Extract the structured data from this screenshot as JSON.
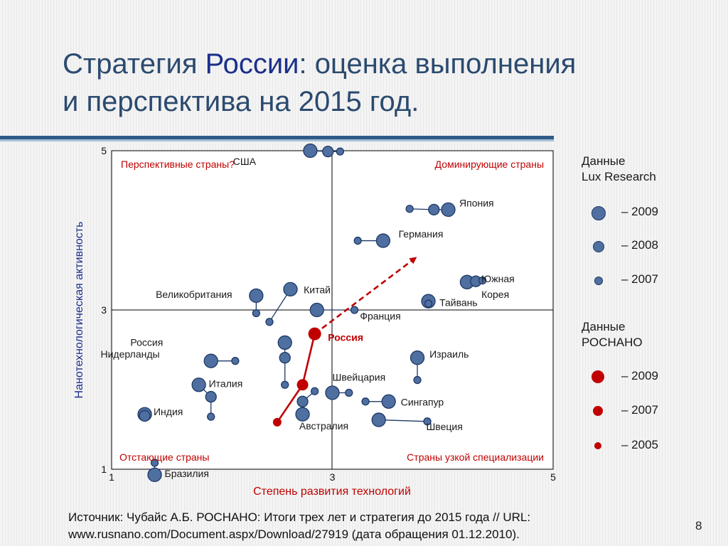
{
  "slide": {
    "title_line1_pre": "Стратегия ",
    "title_line1_hl": "России",
    "title_line1_post": ": оценка выполнения",
    "title_line2": "и перспектива на 2015 год.",
    "source_line1": "Источник: Чубайс А.Б. РОСНАНО: Итоги трех лет и стратегия до 2015 года // URL:",
    "source_line2": "www.rusnano.com/Document.aspx/Download/27919 (дата обращения 01.12.2010).",
    "page_number": "8"
  },
  "colors": {
    "lux": "#4f6fa0",
    "lux_stroke": "#1e3866",
    "rosnano": "#c00000",
    "quadrant_text": "#c00000",
    "axis_title": "#c00000",
    "title": "#2b4a6f"
  },
  "legend": {
    "lux_title": [
      "Данные",
      "Lux Research"
    ],
    "lux_items": [
      {
        "label": "– 2009",
        "size": "large"
      },
      {
        "label": "– 2008",
        "size": "medium"
      },
      {
        "label": "– 2007",
        "size": "small"
      }
    ],
    "rosnano_title": [
      "Данные",
      "РОСНАНО"
    ],
    "rosnano_items": [
      {
        "label": "– 2009",
        "size": "large"
      },
      {
        "label": "– 2007",
        "size": "medium"
      },
      {
        "label": "– 2005",
        "size": "small"
      }
    ]
  },
  "chart_data": {
    "type": "scatter",
    "xlabel": "Степень развития технологий",
    "ylabel": "Нанотехнологическая активность",
    "xlim": [
      1,
      5
    ],
    "ylim": [
      1,
      5
    ],
    "xticks": [
      "1",
      "3",
      "5"
    ],
    "yticks": [
      "1",
      "3",
      "5"
    ],
    "grid": false,
    "divider_lines": {
      "x": 3,
      "y": 3
    },
    "quadrants": [
      {
        "label": "Перспективные страны?",
        "position": "top-left"
      },
      {
        "label": "Доминирующие страны",
        "position": "top-right"
      },
      {
        "label": "Отстающие страны",
        "position": "bottom-left"
      },
      {
        "label": "Страны узкой специализации",
        "position": "bottom-right"
      }
    ],
    "countries": [
      {
        "name": "США",
        "label_x": 2.1,
        "label_y": 4.82,
        "points": [
          {
            "x": 2.8,
            "y": 5.0,
            "year": 2009
          },
          {
            "x": 2.96,
            "y": 4.99,
            "year": 2008
          },
          {
            "x": 3.07,
            "y": 4.99,
            "year": 2007
          }
        ]
      },
      {
        "name": "Япония",
        "label_x": 4.15,
        "label_y": 4.3,
        "points": [
          {
            "x": 4.05,
            "y": 4.26,
            "year": 2009
          },
          {
            "x": 3.92,
            "y": 4.26,
            "year": 2008
          },
          {
            "x": 3.7,
            "y": 4.27,
            "year": 2007
          }
        ]
      },
      {
        "name": "Германия",
        "label_x": 3.6,
        "label_y": 3.91,
        "points": [
          {
            "x": 3.46,
            "y": 3.87,
            "year": 2009
          },
          {
            "x": 3.23,
            "y": 3.87,
            "year": 2007
          }
        ]
      },
      {
        "name": "Южная",
        "label_x": 4.35,
        "label_y": 3.35,
        "points": [
          {
            "x": 4.22,
            "y": 3.35,
            "year": 2009
          },
          {
            "x": 4.3,
            "y": 3.36,
            "year": 2008
          },
          {
            "x": 4.36,
            "y": 3.37,
            "year": 2007
          }
        ]
      },
      {
        "name": "Корея",
        "label_x": 4.35,
        "label_y": 3.15,
        "points": []
      },
      {
        "name": "Тайвань",
        "label_x": 3.97,
        "label_y": 3.05,
        "points": [
          {
            "x": 3.87,
            "y": 3.11,
            "year": 2009
          },
          {
            "x": 3.87,
            "y": 3.08,
            "year": 2007
          }
        ]
      },
      {
        "name": "Франция",
        "label_x": 3.25,
        "label_y": 2.88,
        "points": [
          {
            "x": 2.86,
            "y": 3.0,
            "year": 2009
          },
          {
            "x": 3.2,
            "y": 3.0,
            "year": 2007
          }
        ]
      },
      {
        "name": "Китай",
        "label_x": 2.74,
        "label_y": 3.21,
        "points": [
          {
            "x": 2.62,
            "y": 3.26,
            "year": 2009
          },
          {
            "x": 2.43,
            "y": 2.85,
            "year": 2007
          }
        ]
      },
      {
        "name": "Великобритания",
        "label_x": 1.4,
        "label_y": 3.15,
        "points": [
          {
            "x": 2.31,
            "y": 3.18,
            "year": 2009
          },
          {
            "x": 2.31,
            "y": 2.96,
            "year": 2007
          }
        ]
      },
      {
        "name": "Россия",
        "label_x": 1.17,
        "label_y": 2.55,
        "points": [
          {
            "x": 2.57,
            "y": 2.59,
            "year": 2009
          },
          {
            "x": 2.57,
            "y": 2.4,
            "year": 2008
          },
          {
            "x": 2.57,
            "y": 2.06,
            "year": 2007
          }
        ]
      },
      {
        "name": "Нидерланды",
        "label_x": 0.9,
        "label_y": 2.4,
        "points": [
          {
            "x": 1.9,
            "y": 2.36,
            "year": 2009
          },
          {
            "x": 2.12,
            "y": 2.36,
            "year": 2007
          }
        ]
      },
      {
        "name": "Израиль",
        "label_x": 3.88,
        "label_y": 2.4,
        "points": [
          {
            "x": 3.77,
            "y": 2.4,
            "year": 2009
          },
          {
            "x": 3.77,
            "y": 2.12,
            "year": 2007
          }
        ]
      },
      {
        "name": "Италия",
        "label_x": 1.88,
        "label_y": 2.03,
        "points": [
          {
            "x": 1.79,
            "y": 2.06,
            "year": 2009
          },
          {
            "x": 1.9,
            "y": 1.91,
            "year": 2008
          },
          {
            "x": 1.9,
            "y": 1.66,
            "year": 2007
          }
        ]
      },
      {
        "name": "Швейцария",
        "label_x": 3.0,
        "label_y": 2.11,
        "points": [
          {
            "x": 3.0,
            "y": 1.96,
            "year": 2009
          },
          {
            "x": 3.15,
            "y": 1.96,
            "year": 2007
          }
        ]
      },
      {
        "name": "Индия",
        "label_x": 1.38,
        "label_y": 1.68,
        "points": [
          {
            "x": 1.3,
            "y": 1.69,
            "year": 2009
          },
          {
            "x": 1.3,
            "y": 1.67,
            "year": 2008
          }
        ]
      },
      {
        "name": "Сингапур",
        "label_x": 3.62,
        "label_y": 1.8,
        "points": [
          {
            "x": 3.51,
            "y": 1.85,
            "year": 2009
          },
          {
            "x": 3.3,
            "y": 1.85,
            "year": 2007
          }
        ]
      },
      {
        "name": "Австралия",
        "label_x": 2.7,
        "label_y": 1.5,
        "points": [
          {
            "x": 2.73,
            "y": 1.69,
            "year": 2009
          },
          {
            "x": 2.73,
            "y": 1.85,
            "year": 2008
          },
          {
            "x": 2.84,
            "y": 1.98,
            "year": 2007
          }
        ]
      },
      {
        "name": "Швеция",
        "label_x": 3.85,
        "label_y": 1.49,
        "points": [
          {
            "x": 3.42,
            "y": 1.62,
            "year": 2009
          },
          {
            "x": 3.86,
            "y": 1.6,
            "year": 2007
          }
        ]
      },
      {
        "name": "Бразилия",
        "label_x": 1.48,
        "label_y": 0.9,
        "points": [
          {
            "x": 1.39,
            "y": 0.93,
            "year": 2009
          },
          {
            "x": 1.39,
            "y": 1.08,
            "year": 2007
          }
        ]
      }
    ],
    "rosnano_russia": {
      "name": "Россия",
      "label_x": 2.96,
      "label_y": 2.61,
      "points": [
        {
          "x": 2.5,
          "y": 1.59,
          "year": 2005
        },
        {
          "x": 2.73,
          "y": 2.06,
          "year": 2007
        },
        {
          "x": 2.84,
          "y": 2.7,
          "year": 2009
        }
      ],
      "projection_to": {
        "x": 3.75,
        "y": 3.65
      }
    }
  }
}
